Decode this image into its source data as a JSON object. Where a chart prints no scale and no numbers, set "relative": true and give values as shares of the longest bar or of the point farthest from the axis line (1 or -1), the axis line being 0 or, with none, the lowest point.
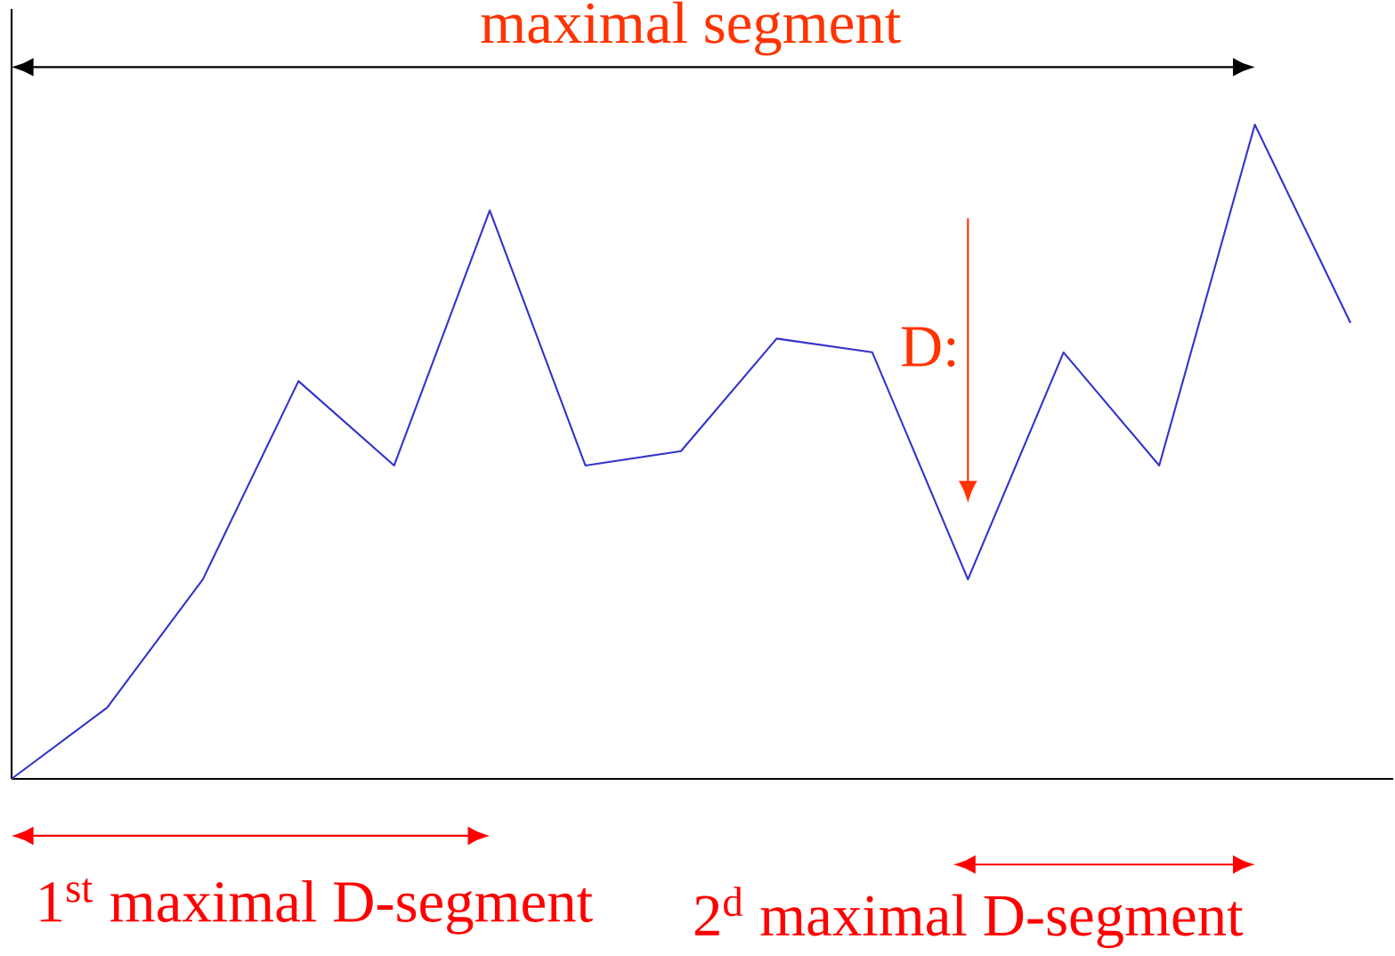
{
  "chart_data": {
    "type": "line",
    "relative": true,
    "categories": [
      null,
      null,
      null,
      null,
      null,
      null,
      null,
      null,
      null,
      null,
      null,
      null,
      null,
      null,
      null
    ],
    "series": [
      {
        "color": "#3333cc",
        "values": [
          0,
          0.109,
          0.305,
          0.608,
          0.479,
          0.869,
          0.479,
          0.501,
          0.673,
          0.652,
          0.305,
          0.652,
          0.479,
          1,
          0.697
        ]
      }
    ],
    "annotations": [
      "maximal segment",
      "D:",
      "1$^{st}$ maximal D-segment",
      "2$^{d}$ maximal D-segment"
    ]
  }
}
